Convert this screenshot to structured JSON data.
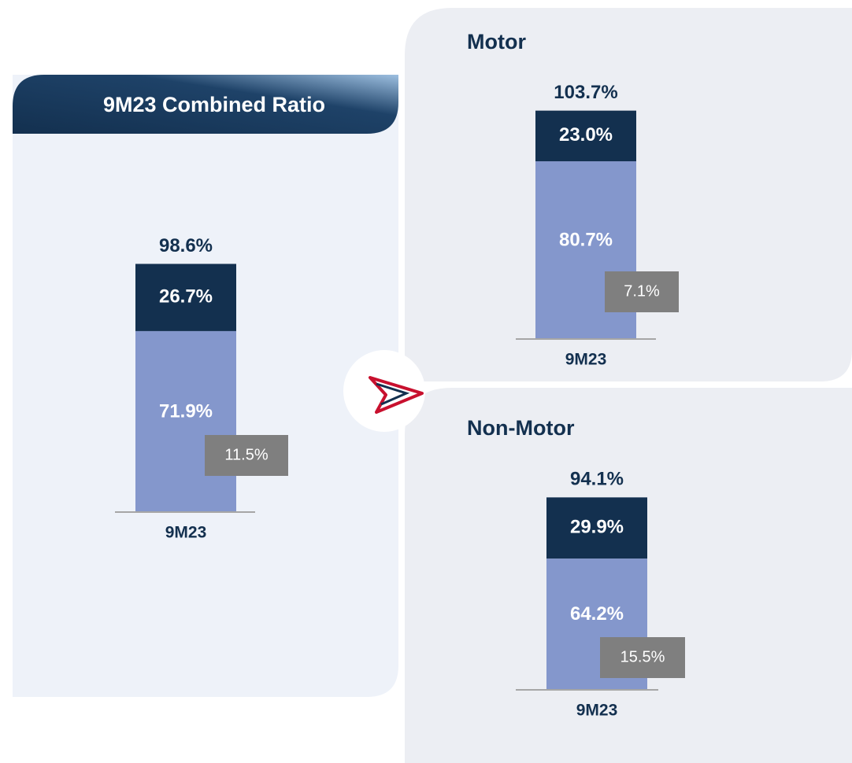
{
  "chart_data": [
    {
      "type": "bar",
      "stacked": true,
      "title": "9M23 Combined Ratio",
      "categories": [
        "9M23"
      ],
      "series": [
        {
          "color": "#8497cc",
          "values": [
            71.9
          ],
          "value_labels": [
            "71.9%"
          ]
        },
        {
          "color": "#13304f",
          "values": [
            26.7
          ],
          "value_labels": [
            "26.7%"
          ]
        }
      ],
      "totals": [
        98.6
      ],
      "total_labels": [
        "98.6%"
      ],
      "inset": {
        "color": "#7f7f7f",
        "values": [
          11.5
        ],
        "value_labels": [
          "11.5%"
        ]
      }
    },
    {
      "type": "bar",
      "stacked": true,
      "title": "Motor",
      "categories": [
        "9M23"
      ],
      "series": [
        {
          "color": "#8497cc",
          "values": [
            80.7
          ],
          "value_labels": [
            "80.7%"
          ]
        },
        {
          "color": "#13304f",
          "values": [
            23.0
          ],
          "value_labels": [
            "23.0%"
          ]
        }
      ],
      "totals": [
        103.7
      ],
      "total_labels": [
        "103.7%"
      ],
      "inset": {
        "color": "#7f7f7f",
        "values": [
          7.1
        ],
        "value_labels": [
          "7.1%"
        ]
      }
    },
    {
      "type": "bar",
      "stacked": true,
      "title": "Non-Motor",
      "categories": [
        "9M23"
      ],
      "series": [
        {
          "color": "#8497cc",
          "values": [
            64.2
          ],
          "value_labels": [
            "64.2%"
          ]
        },
        {
          "color": "#13304f",
          "values": [
            29.9
          ],
          "value_labels": [
            "29.9%"
          ]
        }
      ],
      "totals": [
        94.1
      ],
      "total_labels": [
        "94.1%"
      ],
      "inset": {
        "color": "#7f7f7f",
        "values": [
          15.5
        ],
        "value_labels": [
          "15.5%"
        ]
      }
    }
  ]
}
